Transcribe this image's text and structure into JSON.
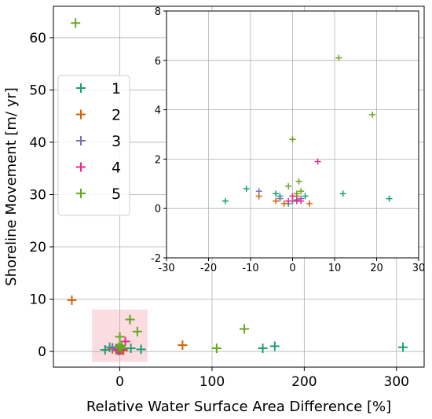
{
  "chart_data": [
    {
      "type": "scatter",
      "title": "",
      "xlabel": "Relative Water Surface Area Difference [%]",
      "ylabel": "Shoreline Movement [m/ yr]",
      "xlim": [
        -72,
        330
      ],
      "ylim": [
        -3,
        66
      ],
      "xticks": [
        0,
        100,
        200,
        300
      ],
      "yticks": [
        0,
        10,
        20,
        30,
        40,
        50,
        60
      ],
      "grid": true,
      "legend": "upper-left",
      "highlight_region": {
        "x": [
          -30,
          30
        ],
        "y": [
          -2,
          8
        ],
        "color": "#f9d6dc"
      },
      "series": [
        {
          "name": "1",
          "color": "#1b9e77",
          "points": [
            [
              -16,
              0.3
            ],
            [
              -11,
              0.8
            ],
            [
              -4,
              0.6
            ],
            [
              -3,
              0.5
            ],
            [
              -1,
              0.2
            ],
            [
              3,
              0.5
            ],
            [
              12,
              0.6
            ],
            [
              23,
              0.4
            ],
            [
              155,
              0.6
            ],
            [
              168,
              1.0
            ],
            [
              307,
              0.8
            ]
          ]
        },
        {
          "name": "2",
          "color": "#d95f02",
          "points": [
            [
              -52,
              9.8
            ],
            [
              -8,
              0.5
            ],
            [
              -4,
              0.3
            ],
            [
              -2,
              0.2
            ],
            [
              0,
              0.3
            ],
            [
              1,
              0.5
            ],
            [
              4,
              0.2
            ],
            [
              68,
              1.2
            ]
          ]
        },
        {
          "name": "3",
          "color": "#7570b3",
          "points": [
            [
              -8,
              0.7
            ],
            [
              -3,
              0.4
            ],
            [
              0,
              0.3
            ],
            [
              1,
              0.35
            ],
            [
              2,
              0.4
            ]
          ]
        },
        {
          "name": "4",
          "color": "#e7298a",
          "points": [
            [
              -1,
              0.3
            ],
            [
              0,
              0.5
            ],
            [
              1,
              0.3
            ],
            [
              2,
              0.3
            ],
            [
              6,
              1.9
            ]
          ]
        },
        {
          "name": "5",
          "color": "#66a61e",
          "points": [
            [
              -48,
              62.8
            ],
            [
              -1,
              0.9
            ],
            [
              0,
              2.8
            ],
            [
              1,
              0.6
            ],
            [
              1.5,
              1.1
            ],
            [
              2,
              0.7
            ],
            [
              11,
              6.1
            ],
            [
              19,
              3.8
            ],
            [
              105,
              0.6
            ],
            [
              135,
              4.3
            ]
          ]
        }
      ]
    },
    {
      "type": "scatter",
      "title": "",
      "xlabel": "",
      "ylabel": "",
      "xlim": [
        -30,
        30
      ],
      "ylim": [
        -2,
        8
      ],
      "xticks": [
        -30,
        -20,
        -10,
        0,
        10,
        20,
        30
      ],
      "yticks": [
        -2,
        0,
        2,
        4,
        6,
        8
      ],
      "grid": true,
      "series": [
        {
          "name": "1",
          "color": "#1b9e77",
          "points": [
            [
              -16,
              0.3
            ],
            [
              -11,
              0.8
            ],
            [
              -4,
              0.6
            ],
            [
              -3,
              0.5
            ],
            [
              -1,
              0.2
            ],
            [
              3,
              0.5
            ],
            [
              12,
              0.6
            ],
            [
              23,
              0.4
            ]
          ]
        },
        {
          "name": "2",
          "color": "#d95f02",
          "points": [
            [
              -8,
              0.5
            ],
            [
              -4,
              0.3
            ],
            [
              -2,
              0.2
            ],
            [
              0,
              0.3
            ],
            [
              1,
              0.5
            ],
            [
              4,
              0.2
            ]
          ]
        },
        {
          "name": "3",
          "color": "#7570b3",
          "points": [
            [
              -8,
              0.7
            ],
            [
              -3,
              0.4
            ],
            [
              0,
              0.3
            ],
            [
              1,
              0.35
            ],
            [
              2,
              0.4
            ]
          ]
        },
        {
          "name": "4",
          "color": "#e7298a",
          "points": [
            [
              -1,
              0.3
            ],
            [
              0,
              0.5
            ],
            [
              1,
              0.3
            ],
            [
              2,
              0.3
            ],
            [
              6,
              1.9
            ]
          ]
        },
        {
          "name": "5",
          "color": "#66a61e",
          "points": [
            [
              -1,
              0.9
            ],
            [
              0,
              2.8
            ],
            [
              1,
              0.6
            ],
            [
              1.5,
              1.1
            ],
            [
              2,
              0.7
            ],
            [
              11,
              6.1
            ],
            [
              19,
              3.8
            ]
          ]
        }
      ]
    }
  ]
}
